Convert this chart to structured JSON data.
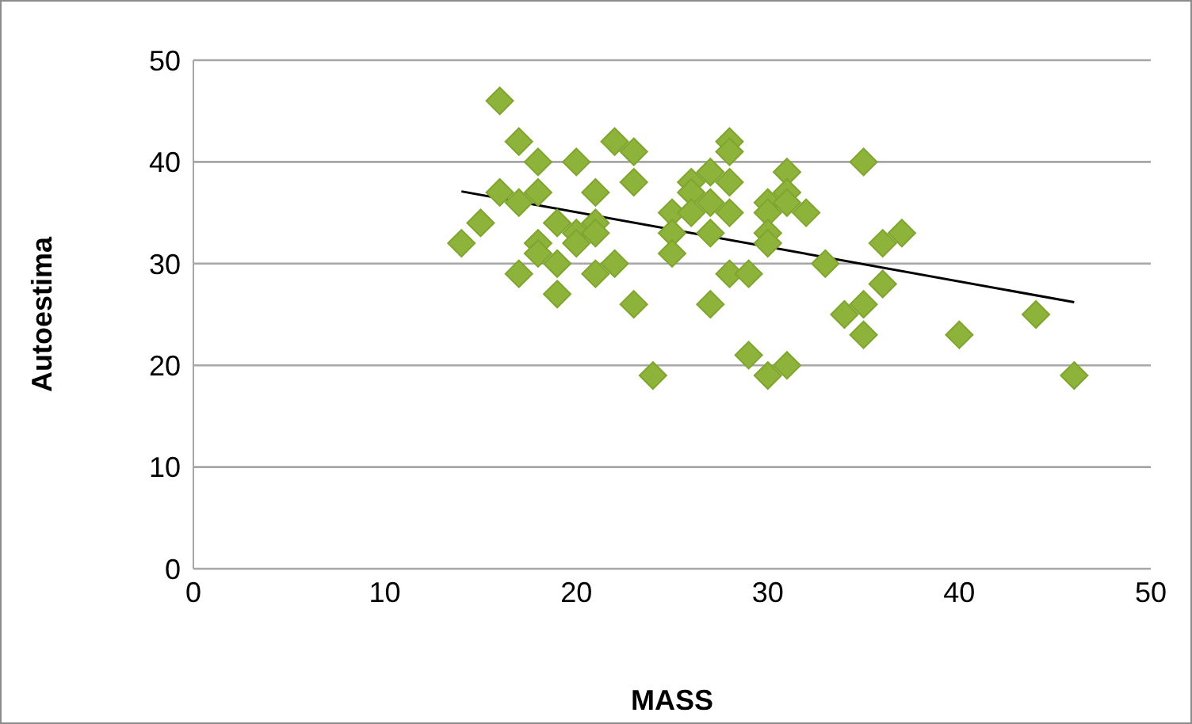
{
  "chart_data": {
    "type": "scatter",
    "xlabel": "MASS",
    "ylabel": "Autoestima",
    "xlim": [
      0,
      50
    ],
    "xticks": [
      0,
      10,
      20,
      30,
      40,
      50
    ],
    "ylim": [
      0,
      50
    ],
    "yticks": [
      0,
      10,
      20,
      30,
      40,
      50
    ],
    "grid": "y",
    "marker": "diamond",
    "series": [
      {
        "type": "scatter",
        "color": "#8db33a",
        "x": [
          14,
          15,
          16,
          16,
          17,
          17,
          17,
          18,
          18,
          18,
          18,
          19,
          19,
          19,
          20,
          20,
          20,
          21,
          21,
          21,
          21,
          22,
          22,
          23,
          23,
          23,
          24,
          25,
          25,
          25,
          26,
          26,
          26,
          27,
          27,
          27,
          27,
          28,
          28,
          28,
          28,
          28,
          29,
          29,
          30,
          30,
          30,
          30,
          30,
          31,
          31,
          31,
          31,
          32,
          33,
          34,
          35,
          35,
          35,
          36,
          36,
          37,
          40,
          44,
          46
        ],
        "values": [
          32,
          34,
          46,
          37,
          42,
          36,
          29,
          40,
          37,
          32,
          31,
          34,
          30,
          27,
          40,
          33,
          32,
          37,
          34,
          33,
          29,
          42,
          30,
          41,
          38,
          26,
          19,
          35,
          33,
          31,
          38,
          37,
          35,
          39,
          36,
          33,
          26,
          42,
          41,
          38,
          35,
          29,
          29,
          21,
          36,
          35,
          33,
          32,
          19,
          39,
          37,
          36,
          20,
          35,
          30,
          25,
          40,
          26,
          23,
          32,
          28,
          33,
          23,
          25,
          19
        ]
      },
      {
        "type": "line",
        "color": "#000000",
        "x": [
          14,
          46
        ],
        "values": [
          37.1,
          26.2
        ],
        "marker": "none"
      }
    ]
  }
}
